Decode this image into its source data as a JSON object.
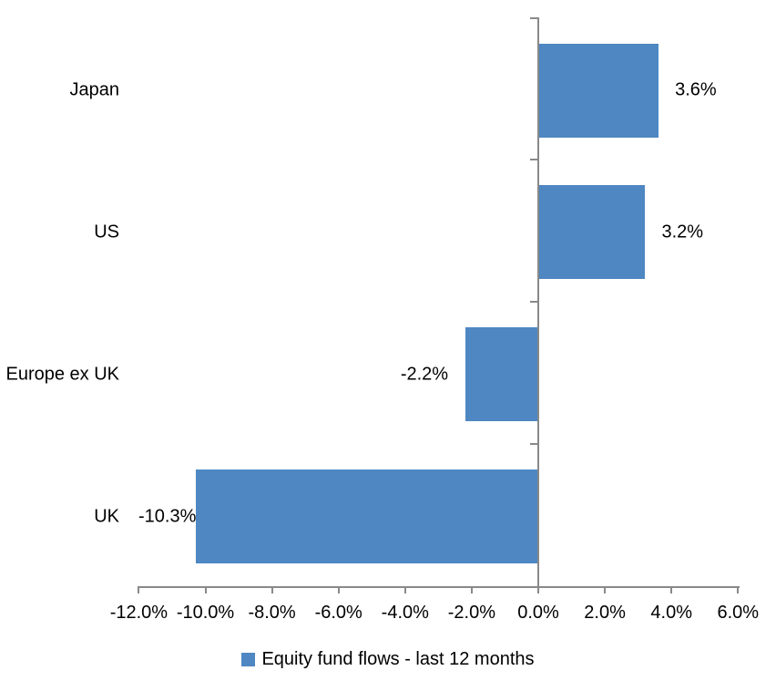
{
  "chart_data": {
    "type": "bar",
    "orientation": "horizontal",
    "categories": [
      "Japan",
      "US",
      "Europe ex UK",
      "UK"
    ],
    "series": [
      {
        "name": "Equity fund flows - last 12 months",
        "values": [
          3.6,
          3.2,
          -2.2,
          -10.3
        ],
        "value_labels": [
          "3.6%",
          "3.2%",
          "-2.2%",
          "-10.3%"
        ],
        "color": "#4E87C2"
      }
    ],
    "x_axis": {
      "min": -12,
      "max": 6,
      "tick_step": 2,
      "ticks": [
        {
          "value": -12,
          "label": "-12.0%"
        },
        {
          "value": -10,
          "label": "-10.0%"
        },
        {
          "value": -8,
          "label": "-8.0%"
        },
        {
          "value": -6,
          "label": "-6.0%"
        },
        {
          "value": -4,
          "label": "-4.0%"
        },
        {
          "value": -2,
          "label": "-2.0%"
        },
        {
          "value": 0,
          "label": "0.0%"
        },
        {
          "value": 2,
          "label": "2.0%"
        },
        {
          "value": 4,
          "label": "4.0%"
        },
        {
          "value": 6,
          "label": "6.0%"
        }
      ]
    },
    "legend": {
      "position": "bottom",
      "entries": [
        {
          "label": "Equity fund flows - last 12 months",
          "color": "#4E87C2"
        }
      ]
    },
    "grid": false,
    "colors": {
      "axis": "#898989",
      "text": "#000000",
      "background": "#FFFFFF"
    }
  }
}
